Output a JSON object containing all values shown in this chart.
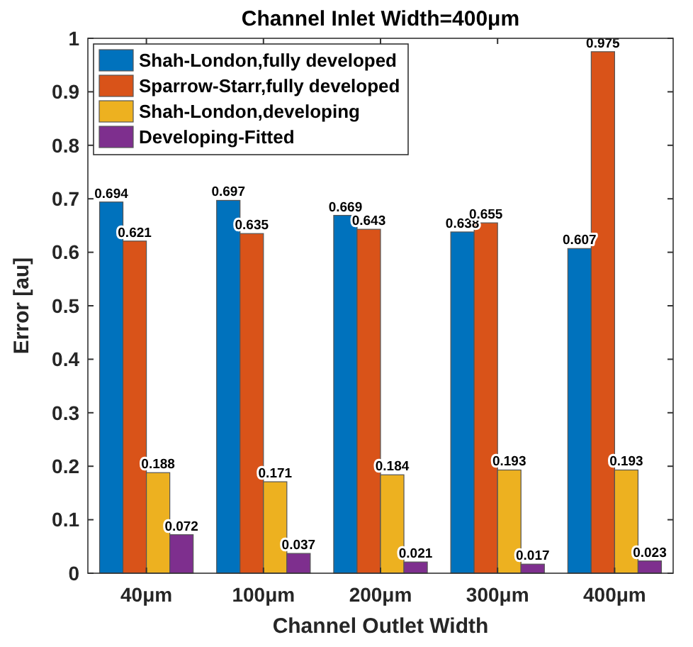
{
  "chart_data": {
    "type": "bar",
    "title": "Channel Inlet Width=400μm",
    "xlabel": "Channel Outlet Width",
    "ylabel": "Error [au]",
    "categories": [
      "40μm",
      "100μm",
      "200μm",
      "300μm",
      "400μm"
    ],
    "series": [
      {
        "name": "Shah-London,fully developed",
        "color": "#0072bd",
        "values": [
          0.694,
          0.697,
          0.669,
          0.638,
          0.607
        ]
      },
      {
        "name": "Sparrow-Starr,fully developed",
        "color": "#d95319",
        "values": [
          0.621,
          0.635,
          0.643,
          0.655,
          0.975
        ]
      },
      {
        "name": "Shah-London,developing",
        "color": "#edb120",
        "values": [
          0.188,
          0.171,
          0.184,
          0.193,
          0.193
        ]
      },
      {
        "name": "Developing-Fitted",
        "color": "#7e2f8e",
        "values": [
          0.072,
          0.037,
          0.021,
          0.017,
          0.023
        ]
      }
    ],
    "ylim": [
      0,
      1
    ],
    "yticks": [
      0,
      0.1,
      0.2,
      0.3,
      0.4,
      0.5,
      0.6,
      0.7,
      0.8,
      0.9,
      1
    ],
    "data_labels": true,
    "legend": "top left",
    "grid": false
  }
}
